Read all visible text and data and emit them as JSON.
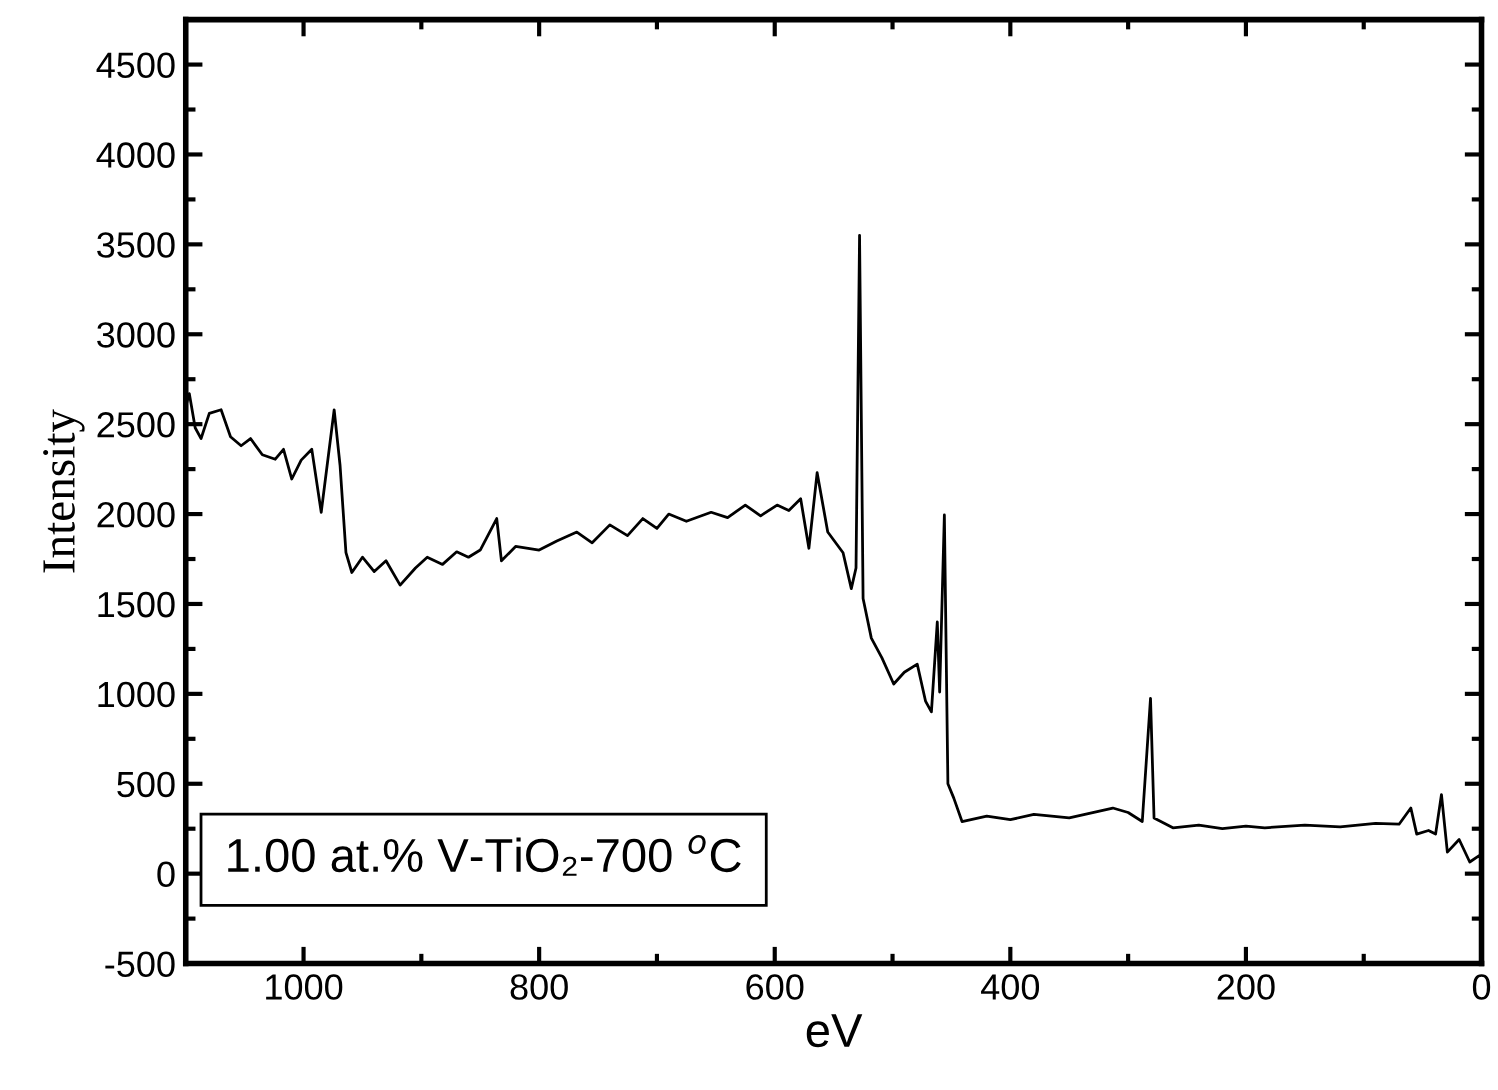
{
  "chart_data": {
    "type": "line",
    "xlabel": "eV",
    "ylabel": "Intensity",
    "x": [
      1100,
      1097,
      1092,
      1087,
      1080,
      1070,
      1062,
      1053,
      1045,
      1035,
      1024,
      1017,
      1010,
      1002,
      993,
      985,
      974,
      969,
      964,
      959,
      950,
      940,
      930,
      918,
      905,
      895,
      882,
      870,
      860,
      850,
      836,
      832,
      820,
      800,
      785,
      768,
      755,
      740,
      725,
      712,
      700,
      690,
      675,
      654,
      640,
      625,
      612,
      598,
      588,
      578,
      571,
      564,
      555,
      542,
      535,
      531,
      528,
      525,
      518,
      509,
      499,
      490,
      479,
      472,
      467,
      462,
      460,
      456,
      453,
      448,
      441,
      420,
      400,
      380,
      350,
      313,
      300,
      288,
      281,
      278,
      262,
      240,
      220,
      200,
      184,
      150,
      120,
      90,
      70,
      60,
      55,
      45,
      39,
      34,
      29,
      19,
      10,
      2,
      0
    ],
    "series": [
      {
        "color": "#000000",
        "values": [
          2600,
          2670,
          2480,
          2420,
          2560,
          2580,
          2430,
          2380,
          2420,
          2330,
          2305,
          2360,
          2195,
          2300,
          2360,
          2010,
          2580,
          2270,
          1785,
          1675,
          1760,
          1680,
          1740,
          1605,
          1700,
          1760,
          1720,
          1790,
          1760,
          1800,
          1975,
          1740,
          1820,
          1800,
          1850,
          1900,
          1840,
          1940,
          1880,
          1975,
          1920,
          2000,
          1960,
          2010,
          1980,
          2050,
          1990,
          2050,
          2020,
          2085,
          1810,
          2230,
          1900,
          1785,
          1585,
          1700,
          3550,
          1530,
          1310,
          1200,
          1055,
          1120,
          1165,
          960,
          900,
          1400,
          1010,
          1995,
          500,
          420,
          290,
          320,
          300,
          330,
          310,
          365,
          340,
          290,
          975,
          310,
          255,
          270,
          250,
          265,
          255,
          270,
          260,
          280,
          275,
          365,
          220,
          240,
          220,
          440,
          120,
          190,
          65,
          100,
          90
        ]
      }
    ],
    "xlim": [
      1100,
      0
    ],
    "xticks": [
      1000,
      {
        "value": 900,
        "label": null
      },
      800,
      {
        "value": 700,
        "label": null
      },
      600,
      {
        "value": 500,
        "label": null
      },
      400,
      {
        "value": 300,
        "label": null
      },
      200,
      {
        "value": 100,
        "label": null
      },
      0
    ],
    "ylim": [
      -500,
      4750
    ],
    "yticks": [
      -500,
      {
        "value": -250,
        "label": null
      },
      0,
      {
        "value": 250,
        "label": null
      },
      500,
      {
        "value": 750,
        "label": null
      },
      1000,
      {
        "value": 1250,
        "label": null
      },
      1500,
      {
        "value": 1750,
        "label": null
      },
      2000,
      {
        "value": 2250,
        "label": null
      },
      2500,
      {
        "value": 2750,
        "label": null
      },
      3000,
      {
        "value": 3250,
        "label": null
      },
      3500,
      {
        "value": 3750,
        "label": null
      },
      4000,
      {
        "value": 4250,
        "label": null
      },
      4500
    ],
    "annotations": [
      "1.00 at.% V-TiO₂-700 $^{o}$C"
    ]
  }
}
